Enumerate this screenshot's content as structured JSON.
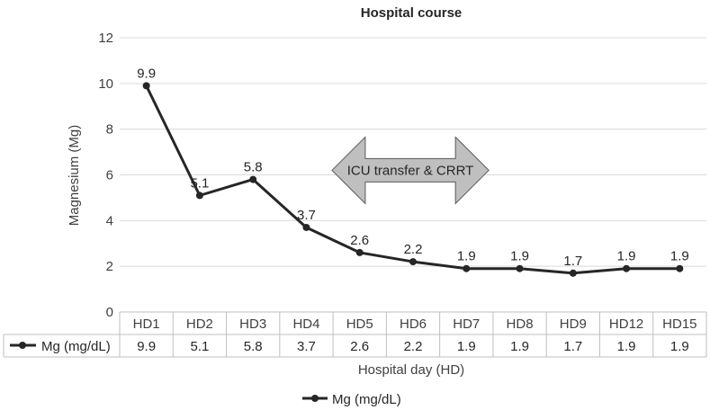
{
  "chart_data": {
    "type": "line",
    "title": "Hospital course",
    "xlabel": "Hospital day (HD)",
    "ylabel": "Magnesium (Mg)",
    "ylim": [
      0,
      12
    ],
    "yticks": [
      0,
      2,
      4,
      6,
      8,
      10,
      12
    ],
    "grid": true,
    "categories": [
      "HD1",
      "HD2",
      "HD3",
      "HD4",
      "HD5",
      "HD6",
      "HD7",
      "HD8",
      "HD9",
      "HD12",
      "HD15"
    ],
    "series": [
      {
        "name": "Mg (mg/dL)",
        "values": [
          9.9,
          5.1,
          5.8,
          3.7,
          2.6,
          2.2,
          1.9,
          1.9,
          1.7,
          1.9,
          1.9
        ],
        "color": "#262626"
      }
    ],
    "data_labels": [
      "9.9",
      "5.1",
      "5.8",
      "3.7",
      "2.6",
      "2.2",
      "1.9",
      "1.9",
      "1.7",
      "1.9",
      "1.9"
    ],
    "data_table": true,
    "legend": "bottom",
    "annotation": {
      "text": "ICU transfer & CRRT",
      "shape": "double-arrow",
      "from_category": "HD5",
      "to_category": "HD7",
      "fill": "#bfbfbf"
    },
    "grid_color": "#d9d9d9",
    "table_border_color": "#bfbfbf"
  }
}
